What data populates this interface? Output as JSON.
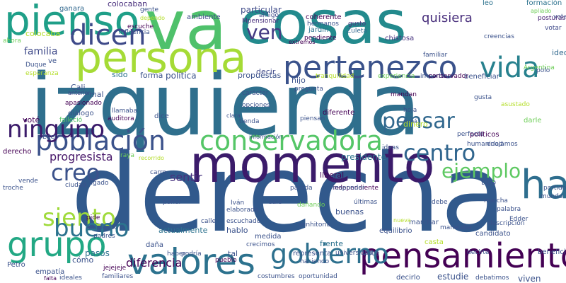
{
  "words": [
    {
      "text": "derecha",
      "color": "#31598c"
    },
    {
      "text": "izquierda",
      "color": "#2f6f8d"
    },
    {
      "text": "momento",
      "color": "#3b1b6a"
    },
    {
      "text": "cosas",
      "color": "#238a8d"
    },
    {
      "text": "va",
      "color": "#4fc16b"
    },
    {
      "text": "persona",
      "color": "#a5db36"
    },
    {
      "text": "pienso",
      "color": "#1f9f88"
    },
    {
      "text": "pertenezco",
      "color": "#3a528b"
    },
    {
      "text": "conservadora",
      "color": "#55c667"
    },
    {
      "text": "pensamiento",
      "color": "#440154"
    },
    {
      "text": "valores",
      "color": "#2c728e"
    },
    {
      "text": "gobierno",
      "color": "#2d708e"
    },
    {
      "text": "población",
      "color": "#3b528b"
    },
    {
      "text": "hace",
      "color": "#2e6e8e"
    },
    {
      "text": "grupo",
      "color": "#22a884"
    },
    {
      "text": "dicen",
      "color": "#3e4a89"
    },
    {
      "text": "ejemplo",
      "color": "#5ec962"
    },
    {
      "text": "vida",
      "color": "#27818e"
    },
    {
      "text": "centro",
      "color": "#31668e"
    },
    {
      "text": "creo",
      "color": "#3b528b"
    },
    {
      "text": "siento",
      "color": "#9fda3a"
    },
    {
      "text": "bueno",
      "color": "#2c738e"
    },
    {
      "text": "ninguno",
      "color": "#3b1b6a"
    },
    {
      "text": "ven",
      "color": "#443a83"
    },
    {
      "text": "pensar",
      "color": "#31688e"
    },
    {
      "text": "quisiera",
      "color": "#472d7b"
    },
    {
      "text": "progresista",
      "color": "#48186a"
    },
    {
      "text": "sentir",
      "color": "#46327e"
    },
    {
      "text": "familia",
      "color": "#3e4989"
    },
    {
      "text": "ideología",
      "color": "#31688e"
    }
  ],
  "small_words": [
    "colocaban",
    "gente",
    "leo",
    "formación",
    "ganara",
    "dependo",
    "apliado",
    "gusto",
    "posturas",
    "Zuleta",
    "influencia",
    "escuche",
    "vota",
    "jardín",
    "votar",
    "particular",
    "amigo",
    "coherente",
    "Mpensionar",
    "hermanos",
    "pendiente",
    "chistosa",
    "extremos",
    "colocaba",
    "ahora",
    "ve",
    "Duque",
    "ambiente",
    "decir",
    "esperanza",
    "tranquilidad",
    "experiencia",
    "importa",
    "familiar",
    "conservador",
    "Argentina",
    "creencias",
    "beneficiar",
    "polo",
    "política",
    "forma",
    "propuestas",
    "Cali",
    "anterior",
    "hijo",
    "sido",
    "mal",
    "apasionado",
    "carácter",
    "pregunta",
    "mandan",
    "gusta",
    "diálogo",
    "falleció",
    "llamaba",
    "auditora",
    "dice",
    "opciones",
    "clara",
    "tienda",
    "piensan",
    "diferente",
    "hoja",
    "papá",
    "asustado",
    "voté",
    "Eder",
    "perfecto",
    "políticos",
    "enojamos",
    "humanidad",
    "ideas",
    "información",
    "recorrido",
    "últimas",
    "carro",
    "vende",
    "derecho",
    "troche",
    "raya",
    "ligado",
    "ciudad",
    "tipo",
    "liberal",
    "presidente",
    "dinero",
    "Iván",
    "elaborado",
    "escuchado",
    "sunhitoria",
    "hablo",
    "actualmente",
    "manejaba",
    "marchar",
    "candidato",
    "marcha",
    "descripción",
    "Edder",
    "mundo",
    "partido",
    "Petro",
    "empatía",
    "nueva",
    "buenas",
    "equilibrio",
    "crecimos",
    "tal",
    "diferencia",
    "pasos",
    "cómo",
    "falta",
    "jejejeje",
    "familiares",
    "ideales",
    "costumbres",
    "oportunidad",
    "decirlo",
    "estudie",
    "debatimos",
    "decirte",
    "beneficiarse",
    "haciendo",
    "universidad",
    "vote",
    "representa",
    "medida",
    "daña",
    "casta",
    "viven",
    "darle",
    "independiente",
    "pide",
    "empleado",
    "padres",
    "haber",
    "podría",
    "pueblo",
    "frente",
    "dañando",
    "responder",
    "parada",
    "poner",
    "calle",
    "sale",
    "debe",
    "palabra"
  ]
}
